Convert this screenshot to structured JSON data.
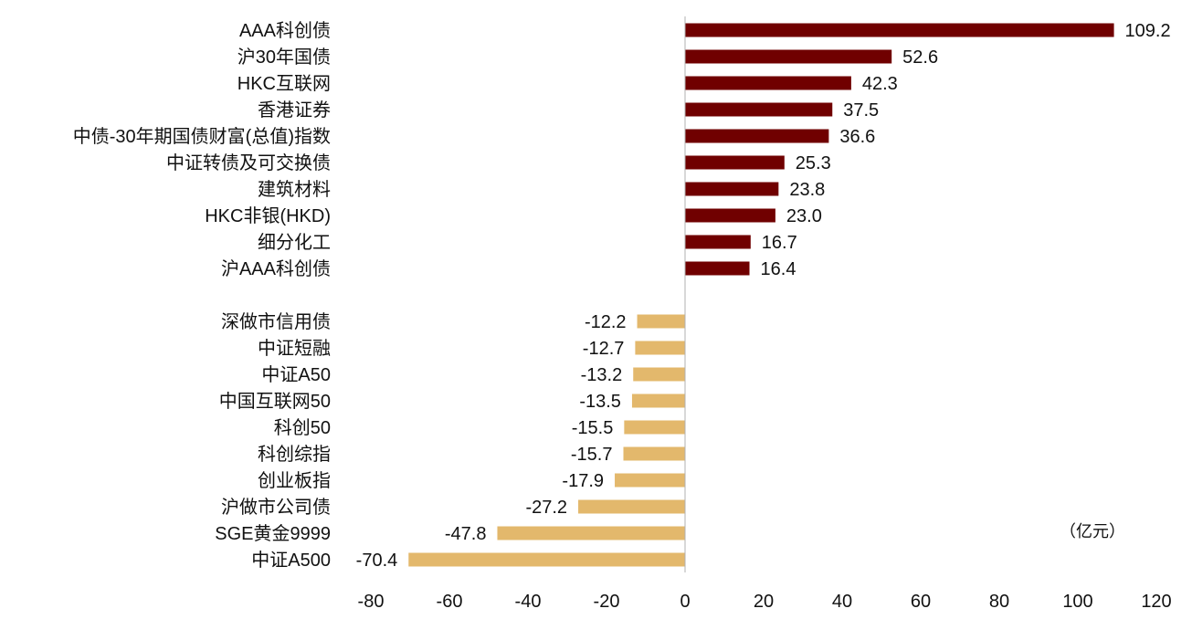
{
  "chart_data": {
    "type": "bar",
    "orientation": "horizontal",
    "unit": "（亿元）",
    "xlim": [
      -80,
      120
    ],
    "x_ticks": [
      "-80",
      "-60",
      "-40",
      "-20",
      "0",
      "20",
      "40",
      "60",
      "80",
      "100",
      "120"
    ],
    "grid": false,
    "colors": {
      "positive": "#700000",
      "negative": "#E3B86C"
    },
    "bars": [
      {
        "label": "AAA科创债",
        "value": 109.2,
        "value_label": "109.2"
      },
      {
        "label": "沪30年国债",
        "value": 52.6,
        "value_label": "52.6"
      },
      {
        "label": "HKC互联网",
        "value": 42.3,
        "value_label": "42.3"
      },
      {
        "label": "香港证券",
        "value": 37.5,
        "value_label": "37.5"
      },
      {
        "label": "中债-30年期国债财富(总值)指数",
        "value": 36.6,
        "value_label": "36.6"
      },
      {
        "label": "中证转债及可交换债",
        "value": 25.3,
        "value_label": "25.3"
      },
      {
        "label": "建筑材料",
        "value": 23.8,
        "value_label": "23.8"
      },
      {
        "label": "HKC非银(HKD)",
        "value": 23.0,
        "value_label": "23.0"
      },
      {
        "label": "细分化工",
        "value": 16.7,
        "value_label": "16.7"
      },
      {
        "label": "沪AAA科创债",
        "value": 16.4,
        "value_label": "16.4"
      },
      {
        "label": "深做市信用债",
        "value": -12.2,
        "value_label": "-12.2"
      },
      {
        "label": "中证短融",
        "value": -12.7,
        "value_label": "-12.7"
      },
      {
        "label": "中证A50",
        "value": -13.2,
        "value_label": "-13.2"
      },
      {
        "label": "中国互联网50",
        "value": -13.5,
        "value_label": "-13.5"
      },
      {
        "label": "科创50",
        "value": -15.5,
        "value_label": "-15.5"
      },
      {
        "label": "科创综指",
        "value": -15.7,
        "value_label": "-15.7"
      },
      {
        "label": "创业板指",
        "value": -17.9,
        "value_label": "-17.9"
      },
      {
        "label": "沪做市公司债",
        "value": -27.2,
        "value_label": "-27.2"
      },
      {
        "label": "SGE黄金9999",
        "value": -47.8,
        "value_label": "-47.8"
      },
      {
        "label": "中证A500",
        "value": -70.4,
        "value_label": "-70.4"
      }
    ]
  }
}
